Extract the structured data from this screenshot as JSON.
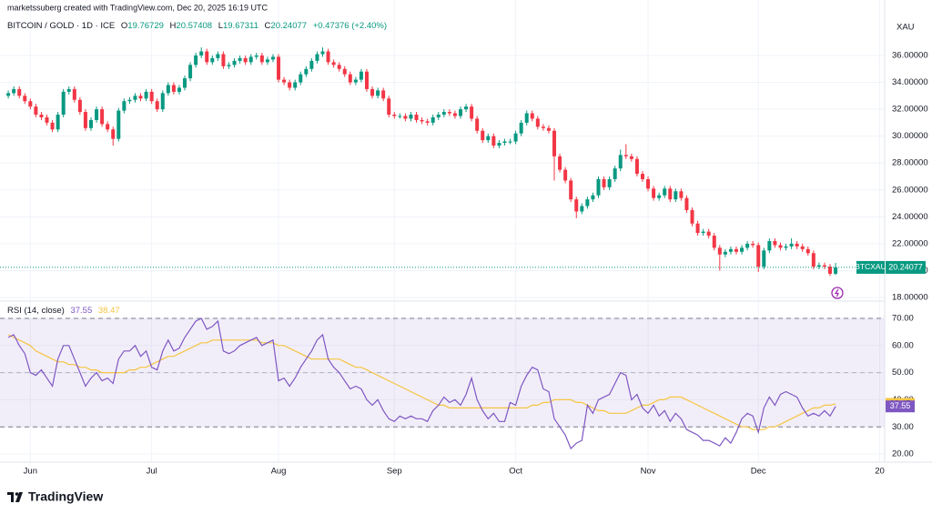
{
  "header": {
    "credit": "marketssuberg created with TradingView.com, Dec 20, 2025 16:19 UTC",
    "symbol": "BITCOIN / GOLD · 1D · ICE",
    "ohlc_labels": [
      "O",
      "H",
      "L",
      "C"
    ],
    "change": "+0.47376 (+2.40%)",
    "currency": "XAU",
    "logo": "TradingView"
  },
  "chart_data": [
    {
      "type": "candlestick",
      "symbol_tag": "BTCXAU",
      "up_color": "#089981",
      "down_color": "#f23645",
      "grid": true,
      "xlim": [
        -1.5,
        158.9
      ],
      "xticks": [
        {
          "value": 4,
          "label": "Jun"
        },
        {
          "value": 26,
          "label": "Jul"
        },
        {
          "value": 49,
          "label": "Aug"
        },
        {
          "value": 70,
          "label": "Sep"
        },
        {
          "value": 92,
          "label": "Oct"
        },
        {
          "value": 116,
          "label": "Nov"
        },
        {
          "value": 136,
          "label": "Dec"
        },
        {
          "value": 158,
          "label": "20"
        }
      ],
      "ylim": [
        17.8,
        39.11
      ],
      "yticks": [
        {
          "value": 18,
          "label": "18.00000"
        },
        {
          "value": 20,
          "label": "20.00000"
        },
        {
          "value": 22,
          "label": "22.00000"
        },
        {
          "value": 24,
          "label": "24.00000"
        },
        {
          "value": 26,
          "label": "26.00000"
        },
        {
          "value": 28,
          "label": "28.00000"
        },
        {
          "value": 30,
          "label": "30.00000"
        },
        {
          "value": 32,
          "label": "32.00000"
        },
        {
          "value": 34,
          "label": "34.00000"
        },
        {
          "value": 36,
          "label": "36.00000"
        }
      ],
      "open": [
        33.0,
        33.2,
        33.5,
        33.0,
        32.6,
        32.2,
        31.6,
        31.4,
        31.0,
        30.5,
        31.6,
        33.3,
        33.5,
        32.7,
        31.8,
        30.6,
        31.2,
        32.0,
        30.9,
        30.5,
        29.8,
        31.9,
        32.6,
        32.7,
        33.0,
        32.8,
        33.3,
        32.6,
        32.0,
        33.2,
        33.8,
        33.3,
        33.6,
        34.3,
        35.3,
        36.0,
        36.3,
        35.5,
        35.8,
        36.1,
        35.2,
        35.3,
        35.6,
        35.8,
        35.5,
        35.9,
        36.0,
        35.5,
        35.7,
        35.9,
        34.2,
        34.0,
        33.6,
        34.0,
        34.6,
        35.0,
        35.6,
        36.1,
        36.3,
        35.5,
        35.3,
        35.0,
        34.6,
        34.0,
        34.2,
        34.8,
        33.5,
        33.0,
        33.4,
        32.8,
        31.6,
        31.5,
        31.5,
        31.3,
        31.6,
        31.2,
        31.1,
        31.0,
        31.4,
        31.6,
        31.8,
        31.7,
        31.5,
        32.0,
        32.2,
        31.3,
        30.4,
        29.7,
        30.0,
        29.3,
        29.5,
        29.6,
        29.6,
        30.2,
        31.0,
        31.7,
        31.3,
        30.7,
        30.6,
        30.4,
        28.5,
        27.5,
        26.7,
        25.3,
        24.4,
        24.8,
        25.3,
        25.6,
        26.8,
        26.2,
        26.8,
        27.6,
        28.6,
        28.5,
        28.3,
        27.2,
        26.8,
        26.1,
        25.4,
        25.6,
        26.1,
        25.3,
        25.9,
        25.4,
        24.5,
        23.5,
        22.8,
        22.9,
        22.6,
        21.7,
        21.2,
        21.4,
        21.6,
        21.4,
        21.7,
        22.0,
        21.9,
        20.3,
        21.5,
        22.2,
        21.9,
        21.7,
        21.8,
        22.0,
        21.8,
        21.6,
        21.3,
        20.3,
        20.4,
        20.3,
        19.76729
      ],
      "high": [
        33.4,
        33.7,
        33.7,
        33.2,
        32.8,
        32.4,
        31.8,
        31.6,
        31.2,
        31.8,
        33.5,
        33.7,
        33.7,
        32.9,
        32.0,
        31.4,
        32.2,
        32.2,
        31.1,
        30.7,
        32.1,
        32.8,
        32.9,
        33.2,
        33.2,
        33.5,
        33.5,
        32.8,
        33.4,
        34.0,
        34.0,
        33.8,
        34.5,
        35.5,
        36.2,
        36.6,
        36.5,
        36.0,
        36.3,
        36.3,
        35.5,
        35.8,
        36.0,
        36.0,
        36.1,
        36.2,
        36.2,
        35.9,
        36.1,
        36.1,
        34.4,
        34.2,
        34.2,
        34.8,
        35.2,
        35.8,
        36.3,
        36.6,
        36.5,
        35.7,
        35.5,
        35.2,
        34.8,
        34.4,
        35.0,
        35.0,
        33.7,
        33.6,
        33.6,
        33.0,
        31.8,
        31.7,
        31.7,
        31.8,
        31.8,
        31.4,
        31.3,
        31.6,
        31.8,
        32.0,
        32.0,
        31.9,
        32.2,
        32.4,
        32.4,
        31.5,
        30.6,
        30.2,
        30.2,
        29.7,
        29.8,
        29.8,
        30.4,
        31.2,
        31.9,
        31.9,
        31.5,
        30.9,
        30.8,
        30.6,
        28.7,
        27.7,
        26.9,
        25.5,
        25.0,
        25.5,
        25.8,
        27.0,
        27.0,
        27.0,
        27.8,
        29.0,
        29.4,
        28.7,
        28.5,
        27.4,
        27.0,
        26.3,
        25.8,
        26.3,
        26.3,
        26.1,
        26.1,
        25.6,
        24.7,
        23.7,
        23.1,
        23.1,
        22.8,
        21.9,
        21.6,
        21.8,
        21.8,
        21.9,
        22.2,
        22.2,
        22.1,
        21.7,
        22.4,
        22.4,
        22.1,
        22.0,
        22.4,
        22.2,
        22.0,
        21.8,
        21.5,
        20.6,
        20.6,
        20.5,
        20.57408
      ],
      "low": [
        32.8,
        33.0,
        32.8,
        32.4,
        32.0,
        31.4,
        31.2,
        30.8,
        30.3,
        30.3,
        31.4,
        33.1,
        32.5,
        31.6,
        30.4,
        30.4,
        31.0,
        30.7,
        30.3,
        29.3,
        29.6,
        31.7,
        32.4,
        32.5,
        32.6,
        32.6,
        32.4,
        31.8,
        31.8,
        33.0,
        33.1,
        33.1,
        33.4,
        34.1,
        35.1,
        35.8,
        35.3,
        35.3,
        35.6,
        35.0,
        35.0,
        35.1,
        35.4,
        35.3,
        35.3,
        35.7,
        35.3,
        35.3,
        35.5,
        34.0,
        33.8,
        33.4,
        33.4,
        33.8,
        34.4,
        34.8,
        35.4,
        35.9,
        35.3,
        35.1,
        34.8,
        34.4,
        33.8,
        33.8,
        34.0,
        33.3,
        32.8,
        32.8,
        32.6,
        31.4,
        31.3,
        31.3,
        31.1,
        31.1,
        31.0,
        30.9,
        30.8,
        30.8,
        31.2,
        31.4,
        31.5,
        31.3,
        31.3,
        31.8,
        31.1,
        30.2,
        29.5,
        29.5,
        29.1,
        29.1,
        29.3,
        29.4,
        29.4,
        30.0,
        30.8,
        31.1,
        30.5,
        30.4,
        30.2,
        26.7,
        27.3,
        26.5,
        25.1,
        23.9,
        24.2,
        24.6,
        25.1,
        25.4,
        26.0,
        26.0,
        26.6,
        27.4,
        28.3,
        28.1,
        27.0,
        26.6,
        25.9,
        25.2,
        25.2,
        25.4,
        25.1,
        25.1,
        25.2,
        24.3,
        23.3,
        22.6,
        22.6,
        22.4,
        21.5,
        20.0,
        21.0,
        21.2,
        21.2,
        21.2,
        21.5,
        21.7,
        19.9,
        20.1,
        21.3,
        21.7,
        21.5,
        21.5,
        21.6,
        21.6,
        21.4,
        21.1,
        20.1,
        20.1,
        20.1,
        19.6,
        19.67311
      ],
      "close": [
        33.2,
        33.5,
        33.0,
        32.6,
        32.2,
        31.6,
        31.4,
        31.0,
        30.5,
        31.6,
        33.3,
        33.5,
        32.7,
        31.8,
        30.6,
        31.2,
        32.0,
        30.9,
        30.5,
        29.8,
        31.9,
        32.6,
        32.7,
        33.0,
        32.8,
        33.3,
        32.6,
        32.0,
        33.2,
        33.8,
        33.3,
        33.6,
        34.3,
        35.3,
        36.0,
        36.3,
        35.5,
        35.8,
        36.1,
        35.2,
        35.3,
        35.6,
        35.8,
        35.5,
        35.9,
        36.0,
        35.5,
        35.7,
        35.9,
        34.2,
        34.0,
        33.6,
        34.0,
        34.6,
        35.0,
        35.6,
        36.1,
        36.3,
        35.5,
        35.3,
        35.0,
        34.6,
        34.0,
        34.2,
        34.8,
        33.5,
        33.0,
        33.4,
        32.8,
        31.6,
        31.5,
        31.5,
        31.3,
        31.6,
        31.2,
        31.1,
        31.0,
        31.4,
        31.6,
        31.8,
        31.7,
        31.5,
        32.0,
        32.2,
        31.3,
        30.4,
        29.7,
        30.0,
        29.3,
        29.5,
        29.6,
        29.6,
        30.2,
        31.0,
        31.7,
        31.3,
        30.7,
        30.6,
        30.4,
        28.5,
        27.5,
        26.7,
        25.3,
        24.4,
        24.8,
        25.3,
        25.6,
        26.8,
        26.2,
        26.8,
        27.6,
        28.6,
        28.5,
        28.3,
        27.2,
        26.8,
        26.1,
        25.4,
        25.6,
        26.1,
        25.3,
        25.9,
        25.4,
        24.5,
        23.5,
        22.8,
        22.9,
        22.6,
        21.7,
        21.2,
        21.4,
        21.6,
        21.4,
        21.7,
        22.0,
        21.9,
        20.3,
        21.5,
        22.2,
        21.9,
        21.7,
        21.8,
        22.0,
        21.8,
        21.6,
        21.3,
        20.3,
        20.4,
        20.3,
        19.76701,
        20.24077
      ]
    },
    {
      "type": "line",
      "title": "RSI (14, close)",
      "grid": true,
      "band_fill": "#7e57c2",
      "ylim": [
        17,
        75.7
      ],
      "yticks": [
        {
          "value": 20,
          "label": "20.00"
        },
        {
          "value": 30,
          "label": "30.00"
        },
        {
          "value": 40,
          "label": "40.00"
        },
        {
          "value": 50,
          "label": "50.00"
        },
        {
          "value": 60,
          "label": "60.00"
        },
        {
          "value": 70,
          "label": "70.00"
        }
      ],
      "bands": {
        "upper": 70,
        "middle": 50,
        "lower": 30
      },
      "series": [
        {
          "color": "#7e57c2",
          "values": [
            63,
            64,
            60,
            57,
            50,
            49,
            51,
            48,
            45,
            55,
            60,
            60,
            55,
            50,
            45,
            48,
            50,
            47,
            48,
            46,
            55,
            58,
            58,
            60,
            56,
            58,
            52,
            51,
            58,
            62,
            58,
            59,
            63,
            66,
            69,
            70,
            66,
            67,
            69,
            58,
            57,
            58,
            60,
            61,
            62,
            63,
            60,
            61,
            62,
            47,
            48,
            45,
            48,
            52,
            55,
            58,
            62,
            64,
            55,
            52,
            50,
            47,
            44,
            45,
            44,
            40,
            38,
            40,
            36,
            33,
            32,
            34,
            33,
            34,
            33,
            33,
            32,
            36,
            38,
            41,
            39,
            40,
            38,
            42,
            48,
            40,
            36,
            33,
            35,
            32,
            32,
            39,
            38,
            45,
            49,
            52,
            51,
            44,
            43,
            33,
            30,
            27,
            22,
            24,
            25,
            38,
            35,
            40,
            41,
            42,
            46,
            50,
            49,
            40,
            42,
            37,
            35,
            38,
            34,
            36,
            32,
            35,
            33,
            29,
            28,
            27,
            25,
            25,
            24,
            23,
            26,
            24,
            28,
            33,
            35,
            34,
            28,
            37,
            41,
            38,
            42,
            43,
            42,
            41,
            37,
            34,
            35,
            34,
            36,
            34,
            37.55
          ]
        },
        {
          "color": "#f5c542",
          "values": [
            64,
            63,
            62,
            61,
            60,
            58,
            57,
            56,
            55,
            54,
            54,
            53,
            53,
            52,
            52,
            51,
            51,
            50,
            50,
            50,
            50,
            50,
            51,
            51,
            52,
            52,
            53,
            54,
            55,
            56,
            56,
            57,
            58,
            59,
            60,
            61,
            61,
            62,
            62,
            62,
            62,
            62,
            62,
            62,
            62,
            62,
            61,
            61,
            61,
            60,
            60,
            59,
            58,
            57,
            56,
            55,
            55,
            55,
            55,
            55,
            55,
            54,
            53,
            52,
            52,
            51,
            50,
            49,
            48,
            47,
            46,
            45,
            44,
            43,
            42,
            41,
            40,
            39,
            38,
            38,
            37,
            37,
            37,
            37,
            37,
            37,
            37,
            37,
            37,
            37,
            37,
            37,
            37,
            37,
            37,
            38,
            38,
            39,
            39,
            40,
            40,
            40,
            40,
            39,
            39,
            38,
            37,
            36,
            36,
            35,
            35,
            35,
            35,
            36,
            37,
            38,
            38,
            39,
            40,
            40,
            41,
            41,
            41,
            40,
            39,
            38,
            37,
            36,
            35,
            34,
            33,
            32,
            31,
            30,
            30,
            29,
            29,
            29,
            30,
            30,
            31,
            32,
            33,
            34,
            35,
            36,
            37,
            37,
            38,
            38,
            38.47
          ]
        }
      ]
    }
  ]
}
